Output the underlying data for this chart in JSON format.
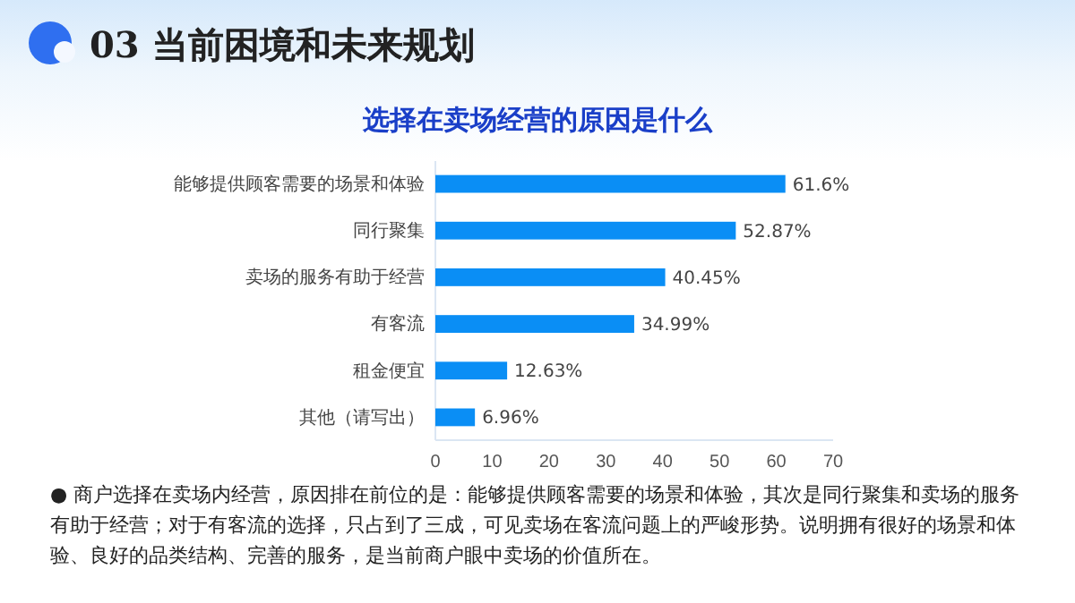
{
  "chart_data": {
    "type": "bar",
    "orientation": "horizontal",
    "title": "选择在卖场经营的原因是什么",
    "annotations": [
      "03 当前困境和未来规划",
      "● 商户选择在卖场内经营，原因排在前位的是：能够提供顾客需要的场景和体验，其次是同行聚集和卖场的服务有助于经营；对于有客流的选择，只占到了三成，可见卖场在客流问题上的严峻形势。说明拥有很好的场景和体验、良好的品类结构、完善的服务，是当前商户眼中卖场的价值所在。"
    ],
    "categories": [
      "能够提供顾客需要的场景和体验",
      "同行聚集",
      "卖场的服务有助于经营",
      "有客流",
      "租金便宜",
      "其他（请写出）"
    ],
    "values": [
      61.6,
      52.87,
      40.45,
      34.99,
      12.63,
      6.96
    ],
    "value_labels": [
      "61.6%",
      "52.87%",
      "40.45%",
      "34.99%",
      "12.63%",
      "6.96%"
    ],
    "color": "#0a8ef5",
    "xlim": [
      0,
      70
    ],
    "xticks": [
      0,
      10,
      20,
      30,
      40,
      50,
      60,
      70
    ],
    "grid": false
  }
}
